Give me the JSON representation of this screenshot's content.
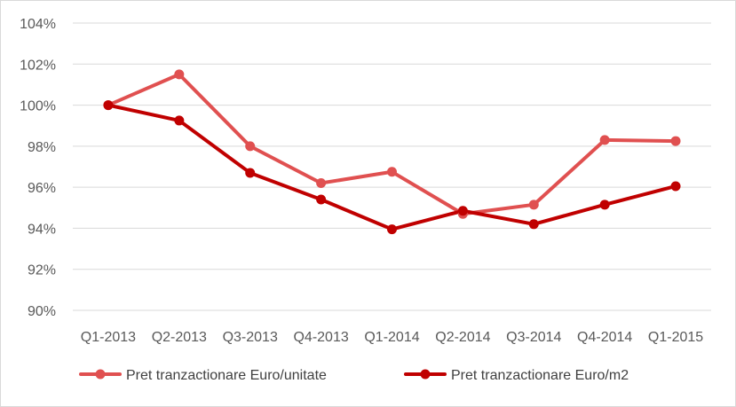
{
  "chart_data": {
    "type": "line",
    "title": "",
    "xlabel": "",
    "ylabel": "",
    "categories": [
      "Q1-2013",
      "Q2-2013",
      "Q3-2013",
      "Q4-2013",
      "Q1-2014",
      "Q2-2014",
      "Q3-2014",
      "Q4-2014",
      "Q1-2015"
    ],
    "y_ticks": [
      "90%",
      "92%",
      "94%",
      "96%",
      "98%",
      "100%",
      "102%",
      "104%"
    ],
    "ylim": [
      90,
      104
    ],
    "grid": "horizontal",
    "legend_position": "bottom",
    "series": [
      {
        "name": "Pret tranzactionare Euro/unitate",
        "color": "#e05050",
        "values": [
          100.0,
          101.5,
          98.0,
          96.2,
          96.75,
          94.7,
          95.15,
          98.3,
          98.25
        ]
      },
      {
        "name": "Pret tranzactionare Euro/m2",
        "color": "#c00000",
        "values": [
          100.0,
          99.25,
          96.7,
          95.4,
          93.95,
          94.85,
          94.2,
          95.15,
          96.05
        ]
      }
    ]
  }
}
